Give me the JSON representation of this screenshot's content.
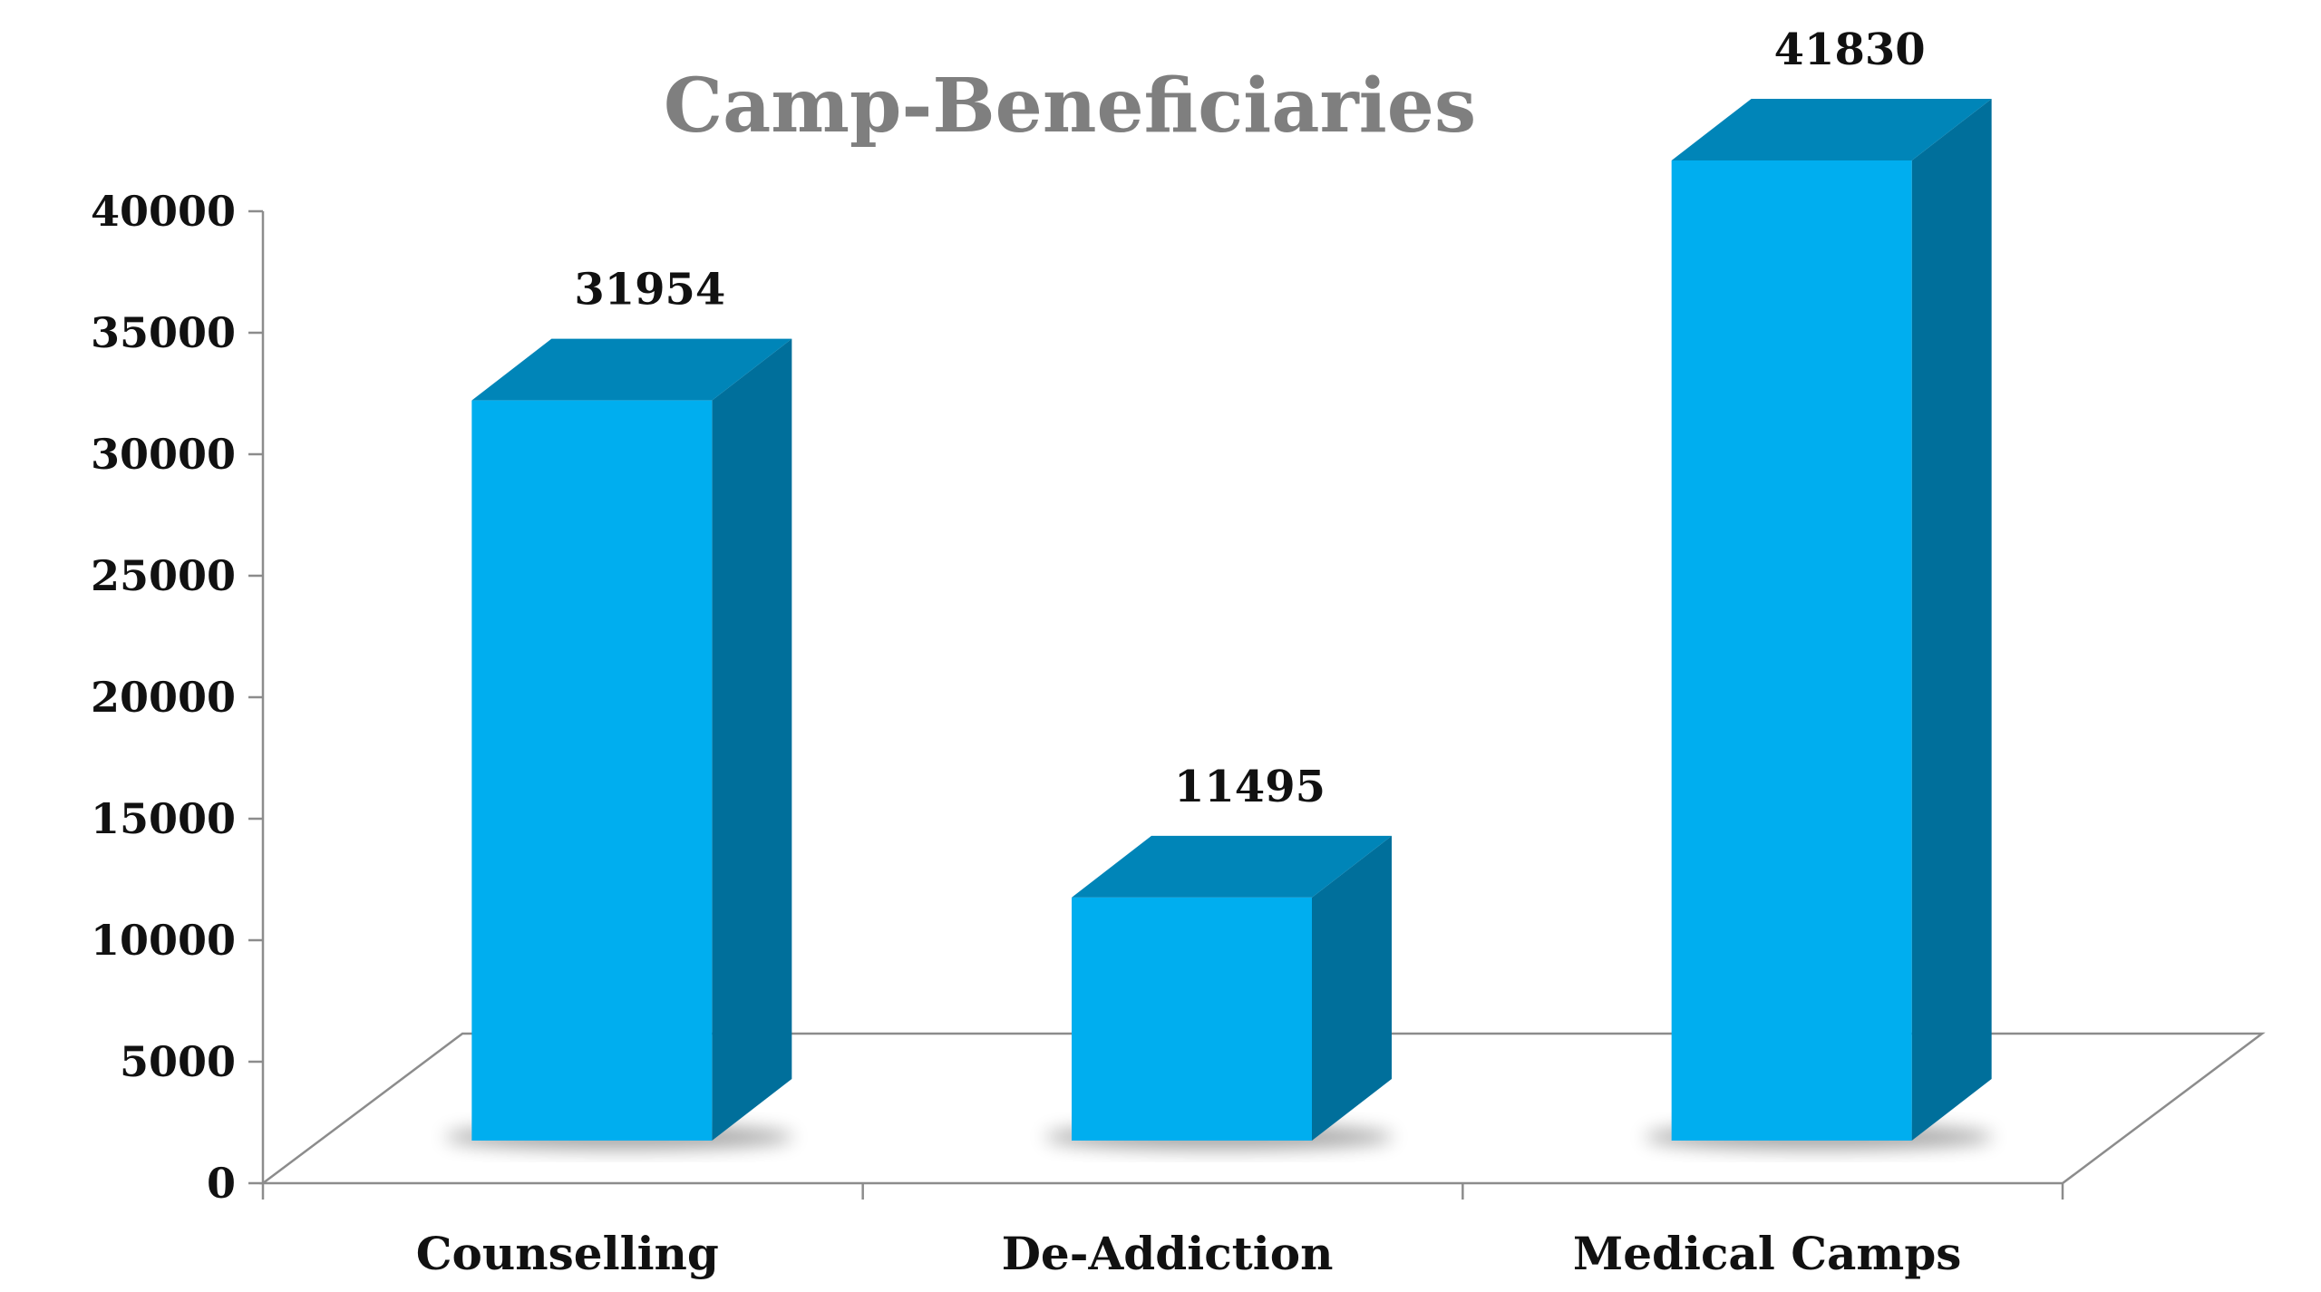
{
  "chart_data": {
    "type": "bar",
    "title": "Camp-Beneficiaries",
    "categories": [
      "Counselling",
      "De-Addiction",
      "Medical Camps"
    ],
    "values": [
      31954,
      11495,
      41830
    ],
    "data_labels": [
      "31954",
      "11495",
      "41830"
    ],
    "ylim": [
      0,
      40000
    ],
    "yticks": [
      0,
      5000,
      10000,
      15000,
      20000,
      25000,
      30000,
      35000,
      40000
    ],
    "ytick_labels": [
      "0",
      "5000",
      "10000",
      "15000",
      "20000",
      "25000",
      "30000",
      "35000",
      "40000"
    ],
    "grid": false,
    "legend": "none",
    "style": "3d-column",
    "colors": {
      "bar_front": "#00aeef",
      "bar_top": "#0085b8",
      "bar_side": "#006f9b",
      "title": "#7f7f7f",
      "axis": "#8c8c8c"
    }
  }
}
